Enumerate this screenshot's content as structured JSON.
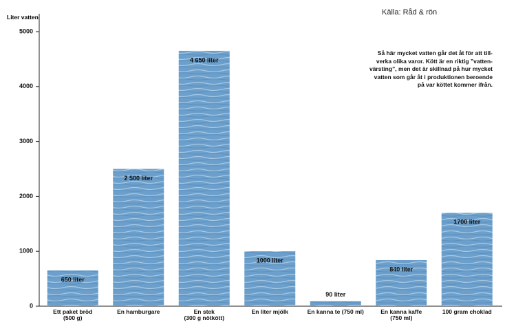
{
  "chart_data": {
    "type": "bar",
    "y_label": "Liter vatten",
    "source": "Källa: Råd & rön",
    "annotation": "Så här mycket vatten går det åt för att till-\nverka olika varor. Kött är en riktig ”vatten-\nvärsting”, men det är skillnad på hur mycket\nvatten som går åt i produktionen beroende\npå var köttet kommer ifrån.",
    "categories": [
      "Ett paket bröd\n(500 g)",
      "En hamburgare",
      "En stek\n(300 g nötkött)",
      "En liter mjölk",
      "En kanna te (750 ml)",
      "En kanna kaffe\n(750 ml)",
      "100 gram choklad"
    ],
    "values": [
      650,
      2500,
      4650,
      1000,
      90,
      840,
      1700
    ],
    "value_labels": [
      "650 liter",
      "2 500 liter",
      "4 650 liter",
      "1000 liter",
      "90 liter",
      "840 liter",
      "1700 liter"
    ],
    "color": "#6c9fcb",
    "ylim": [
      0,
      5000
    ],
    "yticks": [
      0,
      1000,
      2000,
      3000,
      4000,
      5000
    ]
  }
}
